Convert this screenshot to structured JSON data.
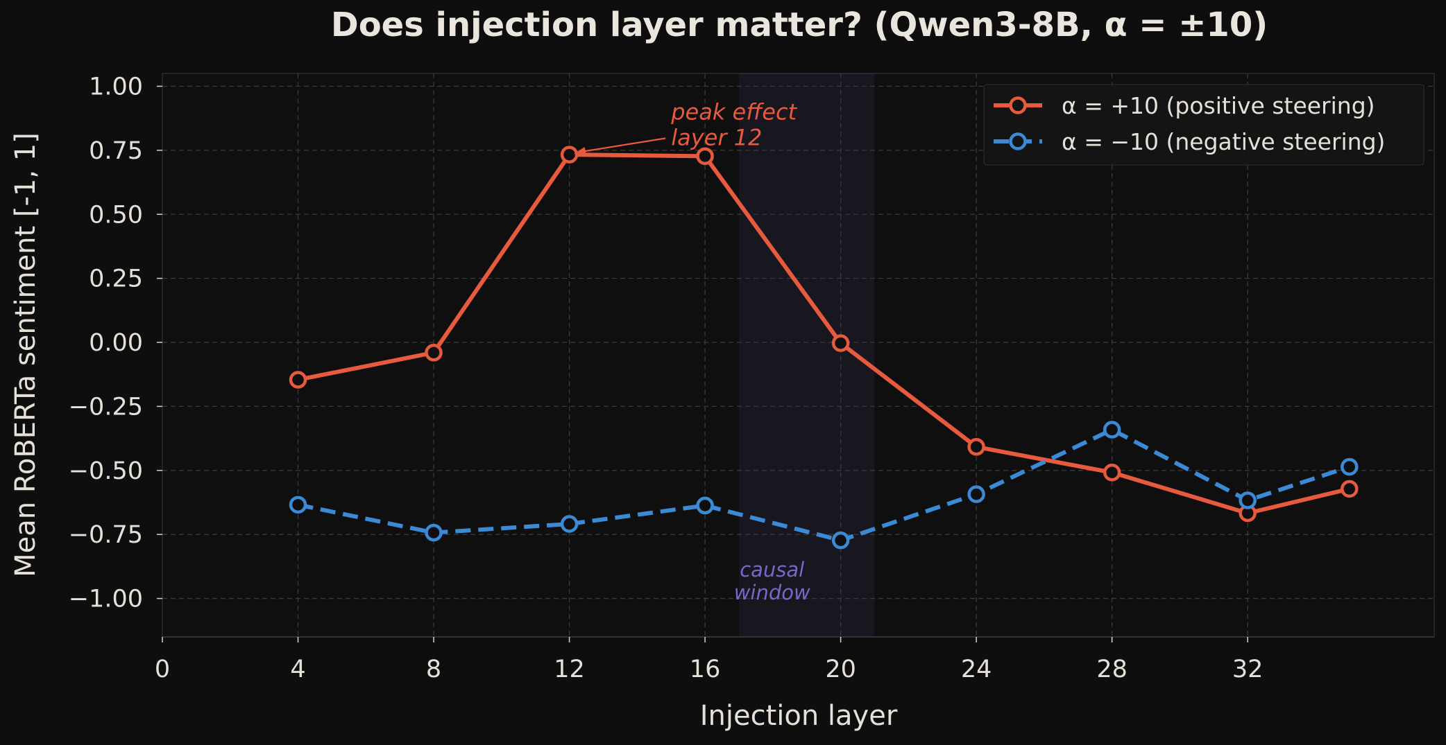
{
  "chart_data": {
    "type": "line",
    "title": "Does injection layer matter?  (Qwen3-8B, α = ±10)",
    "xlabel": "Injection layer",
    "ylabel": "Mean RoBERTa sentiment  [-1, 1]",
    "x": [
      4,
      8,
      12,
      16,
      20,
      24,
      28,
      32,
      35
    ],
    "xlim": [
      0,
      37.5
    ],
    "ylim": [
      -1.15,
      1.05
    ],
    "xticks": [
      0,
      4,
      8,
      12,
      16,
      20,
      24,
      28,
      32
    ],
    "xtick_labels": [
      "0",
      "4",
      "8",
      "12",
      "16",
      "20",
      "24",
      "28",
      "32"
    ],
    "yticks": [
      1.0,
      0.75,
      0.5,
      0.25,
      0.0,
      -0.25,
      -0.5,
      -0.75,
      -1.0
    ],
    "ytick_labels": [
      "1.00",
      "0.75",
      "0.50",
      "0.25",
      "0.00",
      "−0.25",
      "−0.50",
      "−0.75",
      "−1.00"
    ],
    "grid": true,
    "legend_position": "top-right",
    "series": [
      {
        "name": "α = +10  (positive steering)",
        "values": [
          -0.146,
          -0.04,
          0.733,
          0.727,
          -0.003,
          -0.408,
          -0.508,
          -0.667,
          -0.572
        ],
        "color": "#e85a3e",
        "line_style": "solid",
        "marker": "open-circle"
      },
      {
        "name": "α = −10  (negative steering)",
        "values": [
          -0.634,
          -0.743,
          -0.709,
          -0.637,
          -0.773,
          -0.593,
          -0.341,
          -0.617,
          -0.486
        ],
        "color": "#3a8ad6",
        "line_style": "dashed",
        "marker": "open-circle"
      }
    ],
    "shaded_region": {
      "x_range": [
        17,
        21
      ],
      "label": "causal\nwindow",
      "label_lines": [
        "causal",
        "window"
      ],
      "color": "#7a66c7"
    },
    "annotations": [
      {
        "text": "peak effect\nlayer 12",
        "lines": [
          "peak effect",
          "layer 12"
        ],
        "target": [
          12,
          0.733
        ],
        "text_at": [
          15,
          0.87
        ],
        "color": "#e85a3e"
      }
    ]
  }
}
